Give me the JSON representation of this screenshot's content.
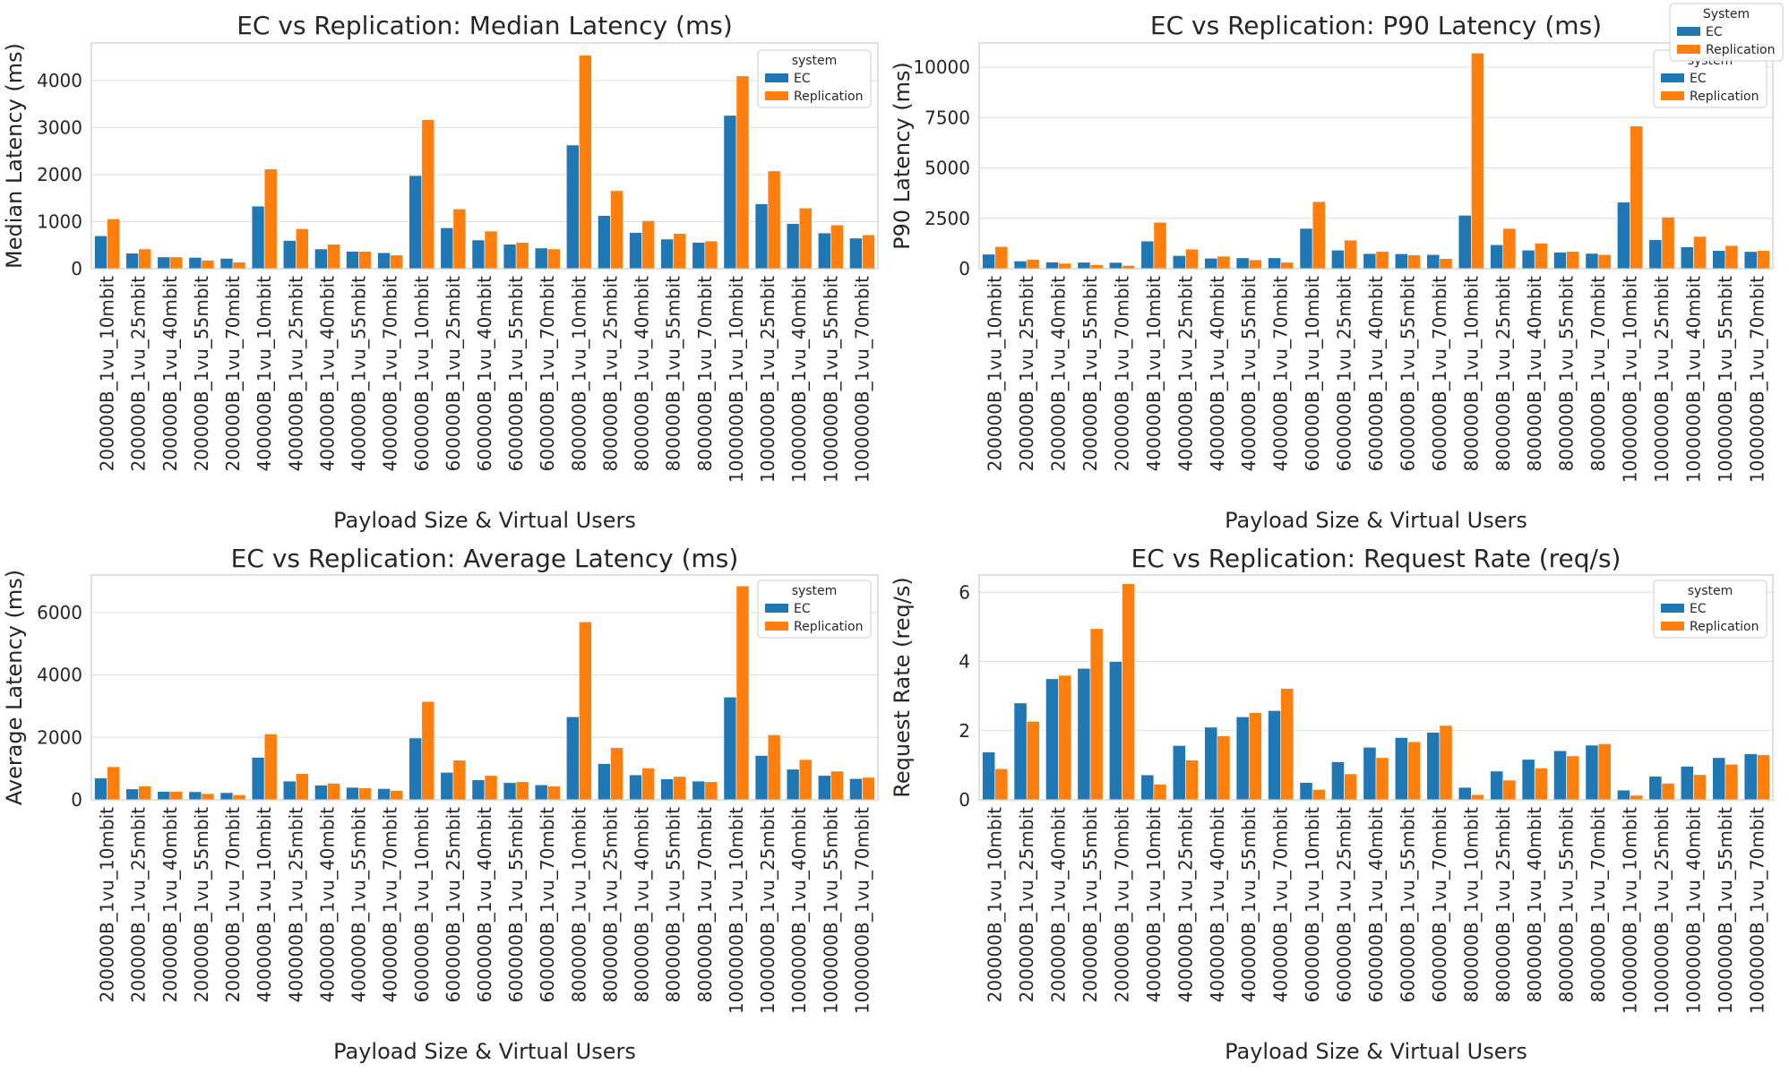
{
  "chart_data": [
    {
      "type": "bar",
      "title": "EC vs Replication: Median Latency (ms)",
      "xlabel": "Payload Size & Virtual Users",
      "ylabel": "Median Latency (ms)",
      "ylim": [
        0,
        4800
      ],
      "yticks": [
        0,
        1000,
        2000,
        3000,
        4000
      ],
      "grid": true,
      "legend": {
        "title": "system",
        "position": "top-right"
      },
      "categories": [
        "200000B_1vu_10mbit",
        "200000B_1vu_25mbit",
        "200000B_1vu_40mbit",
        "200000B_1vu_55mbit",
        "200000B_1vu_70mbit",
        "400000B_1vu_10mbit",
        "400000B_1vu_25mbit",
        "400000B_1vu_40mbit",
        "400000B_1vu_55mbit",
        "400000B_1vu_70mbit",
        "600000B_1vu_10mbit",
        "600000B_1vu_25mbit",
        "600000B_1vu_40mbit",
        "600000B_1vu_55mbit",
        "600000B_1vu_70mbit",
        "800000B_1vu_10mbit",
        "800000B_1vu_25mbit",
        "800000B_1vu_40mbit",
        "800000B_1vu_55mbit",
        "800000B_1vu_70mbit",
        "1000000B_1vu_10mbit",
        "1000000B_1vu_25mbit",
        "1000000B_1vu_40mbit",
        "1000000B_1vu_55mbit",
        "1000000B_1vu_70mbit"
      ],
      "series": [
        {
          "name": "EC",
          "color": "#1f77b4",
          "values": [
            700,
            330,
            250,
            240,
            220,
            1330,
            600,
            420,
            370,
            340,
            1980,
            870,
            610,
            520,
            440,
            2630,
            1130,
            770,
            630,
            560,
            3260,
            1380,
            960,
            760,
            650
          ]
        },
        {
          "name": "Replication",
          "color": "#ff7f0e",
          "values": [
            1060,
            420,
            250,
            180,
            140,
            2120,
            850,
            520,
            370,
            290,
            3170,
            1270,
            800,
            560,
            420,
            4540,
            1660,
            1020,
            750,
            590,
            4100,
            2080,
            1290,
            930,
            720
          ]
        }
      ]
    },
    {
      "type": "bar",
      "title": "EC vs Replication: P90 Latency (ms)",
      "xlabel": "Payload Size & Virtual Users",
      "ylabel": "P90 Latency (ms)",
      "ylim": [
        0,
        11200
      ],
      "yticks": [
        0,
        2500,
        5000,
        7500,
        10000
      ],
      "grid": true,
      "legend": {
        "title": "system",
        "position": "top-right"
      },
      "categories": [
        "200000B_1vu_10mbit",
        "200000B_1vu_25mbit",
        "200000B_1vu_40mbit",
        "200000B_1vu_55mbit",
        "200000B_1vu_70mbit",
        "400000B_1vu_10mbit",
        "400000B_1vu_25mbit",
        "400000B_1vu_40mbit",
        "400000B_1vu_55mbit",
        "400000B_1vu_70mbit",
        "600000B_1vu_10mbit",
        "600000B_1vu_25mbit",
        "600000B_1vu_40mbit",
        "600000B_1vu_55mbit",
        "600000B_1vu_70mbit",
        "800000B_1vu_10mbit",
        "800000B_1vu_25mbit",
        "800000B_1vu_40mbit",
        "800000B_1vu_55mbit",
        "800000B_1vu_70mbit",
        "1000000B_1vu_10mbit",
        "1000000B_1vu_25mbit",
        "1000000B_1vu_40mbit",
        "1000000B_1vu_55mbit",
        "1000000B_1vu_70mbit"
      ],
      "series": [
        {
          "name": "EC",
          "color": "#1f77b4",
          "values": [
            720,
            380,
            330,
            320,
            310,
            1370,
            650,
            520,
            540,
            540,
            2000,
            920,
            750,
            740,
            700,
            2650,
            1190,
            920,
            820,
            760,
            3300,
            1440,
            1080,
            900,
            850
          ]
        },
        {
          "name": "Replication",
          "color": "#ff7f0e",
          "values": [
            1100,
            460,
            270,
            200,
            160,
            2300,
            970,
            620,
            440,
            320,
            3330,
            1420,
            860,
            680,
            500,
            10700,
            2000,
            1270,
            860,
            700,
            7080,
            2560,
            1600,
            1150,
            900
          ]
        }
      ]
    },
    {
      "type": "bar",
      "title": "EC vs Replication: Average Latency (ms)",
      "xlabel": "Payload Size & Virtual Users",
      "ylabel": "Average Latency (ms)",
      "ylim": [
        0,
        7200
      ],
      "yticks": [
        0,
        2000,
        4000,
        6000
      ],
      "grid": true,
      "legend": {
        "title": "system",
        "position": "top-right"
      },
      "categories": [
        "200000B_1vu_10mbit",
        "200000B_1vu_25mbit",
        "200000B_1vu_40mbit",
        "200000B_1vu_55mbit",
        "200000B_1vu_70mbit",
        "400000B_1vu_10mbit",
        "400000B_1vu_25mbit",
        "400000B_1vu_40mbit",
        "400000B_1vu_55mbit",
        "400000B_1vu_70mbit",
        "600000B_1vu_10mbit",
        "600000B_1vu_25mbit",
        "600000B_1vu_40mbit",
        "600000B_1vu_55mbit",
        "600000B_1vu_70mbit",
        "800000B_1vu_10mbit",
        "800000B_1vu_25mbit",
        "800000B_1vu_40mbit",
        "800000B_1vu_55mbit",
        "800000B_1vu_70mbit",
        "1000000B_1vu_10mbit",
        "1000000B_1vu_25mbit",
        "1000000B_1vu_40mbit",
        "1000000B_1vu_55mbit",
        "1000000B_1vu_70mbit"
      ],
      "series": [
        {
          "name": "EC",
          "color": "#1f77b4",
          "values": [
            700,
            350,
            270,
            260,
            230,
            1360,
            600,
            470,
            400,
            360,
            1980,
            880,
            640,
            550,
            480,
            2660,
            1160,
            800,
            670,
            600,
            3290,
            1420,
            980,
            780,
            680
          ]
        },
        {
          "name": "Replication",
          "color": "#ff7f0e",
          "values": [
            1060,
            440,
            270,
            200,
            160,
            2110,
            840,
            530,
            380,
            300,
            3150,
            1270,
            780,
            580,
            440,
            5700,
            1670,
            1020,
            750,
            580,
            6850,
            2080,
            1290,
            920,
            720
          ]
        }
      ]
    },
    {
      "type": "bar",
      "title": "EC vs Replication: Request Rate (req/s)",
      "xlabel": "Payload Size & Virtual Users",
      "ylabel": "Request Rate (req/s)",
      "ylim": [
        0,
        6.5
      ],
      "yticks": [
        0,
        2,
        4,
        6
      ],
      "grid": true,
      "legend": {
        "title": "system",
        "position": "top-right"
      },
      "categories": [
        "200000B_1vu_10mbit",
        "200000B_1vu_25mbit",
        "200000B_1vu_40mbit",
        "200000B_1vu_55mbit",
        "200000B_1vu_70mbit",
        "400000B_1vu_10mbit",
        "400000B_1vu_25mbit",
        "400000B_1vu_40mbit",
        "400000B_1vu_55mbit",
        "400000B_1vu_70mbit",
        "600000B_1vu_10mbit",
        "600000B_1vu_25mbit",
        "600000B_1vu_40mbit",
        "600000B_1vu_55mbit",
        "600000B_1vu_70mbit",
        "800000B_1vu_10mbit",
        "800000B_1vu_25mbit",
        "800000B_1vu_40mbit",
        "800000B_1vu_55mbit",
        "800000B_1vu_70mbit",
        "1000000B_1vu_10mbit",
        "1000000B_1vu_25mbit",
        "1000000B_1vu_40mbit",
        "1000000B_1vu_55mbit",
        "1000000B_1vu_70mbit"
      ],
      "series": [
        {
          "name": "EC",
          "color": "#1f77b4",
          "values": [
            1.38,
            2.8,
            3.5,
            3.8,
            4.0,
            0.72,
            1.57,
            2.1,
            2.4,
            2.58,
            0.5,
            1.1,
            1.52,
            1.8,
            1.95,
            0.36,
            0.83,
            1.17,
            1.42,
            1.58,
            0.28,
            0.68,
            0.97,
            1.22,
            1.33
          ]
        },
        {
          "name": "Replication",
          "color": "#ff7f0e",
          "values": [
            0.9,
            2.27,
            3.6,
            4.95,
            6.25,
            0.45,
            1.15,
            1.85,
            2.52,
            3.22,
            0.3,
            0.75,
            1.22,
            1.68,
            2.15,
            0.15,
            0.57,
            0.92,
            1.27,
            1.62,
            0.13,
            0.48,
            0.73,
            1.03,
            1.3
          ]
        }
      ]
    }
  ],
  "figure_legend": {
    "title": "System",
    "entries": [
      "EC",
      "Replication"
    ]
  }
}
